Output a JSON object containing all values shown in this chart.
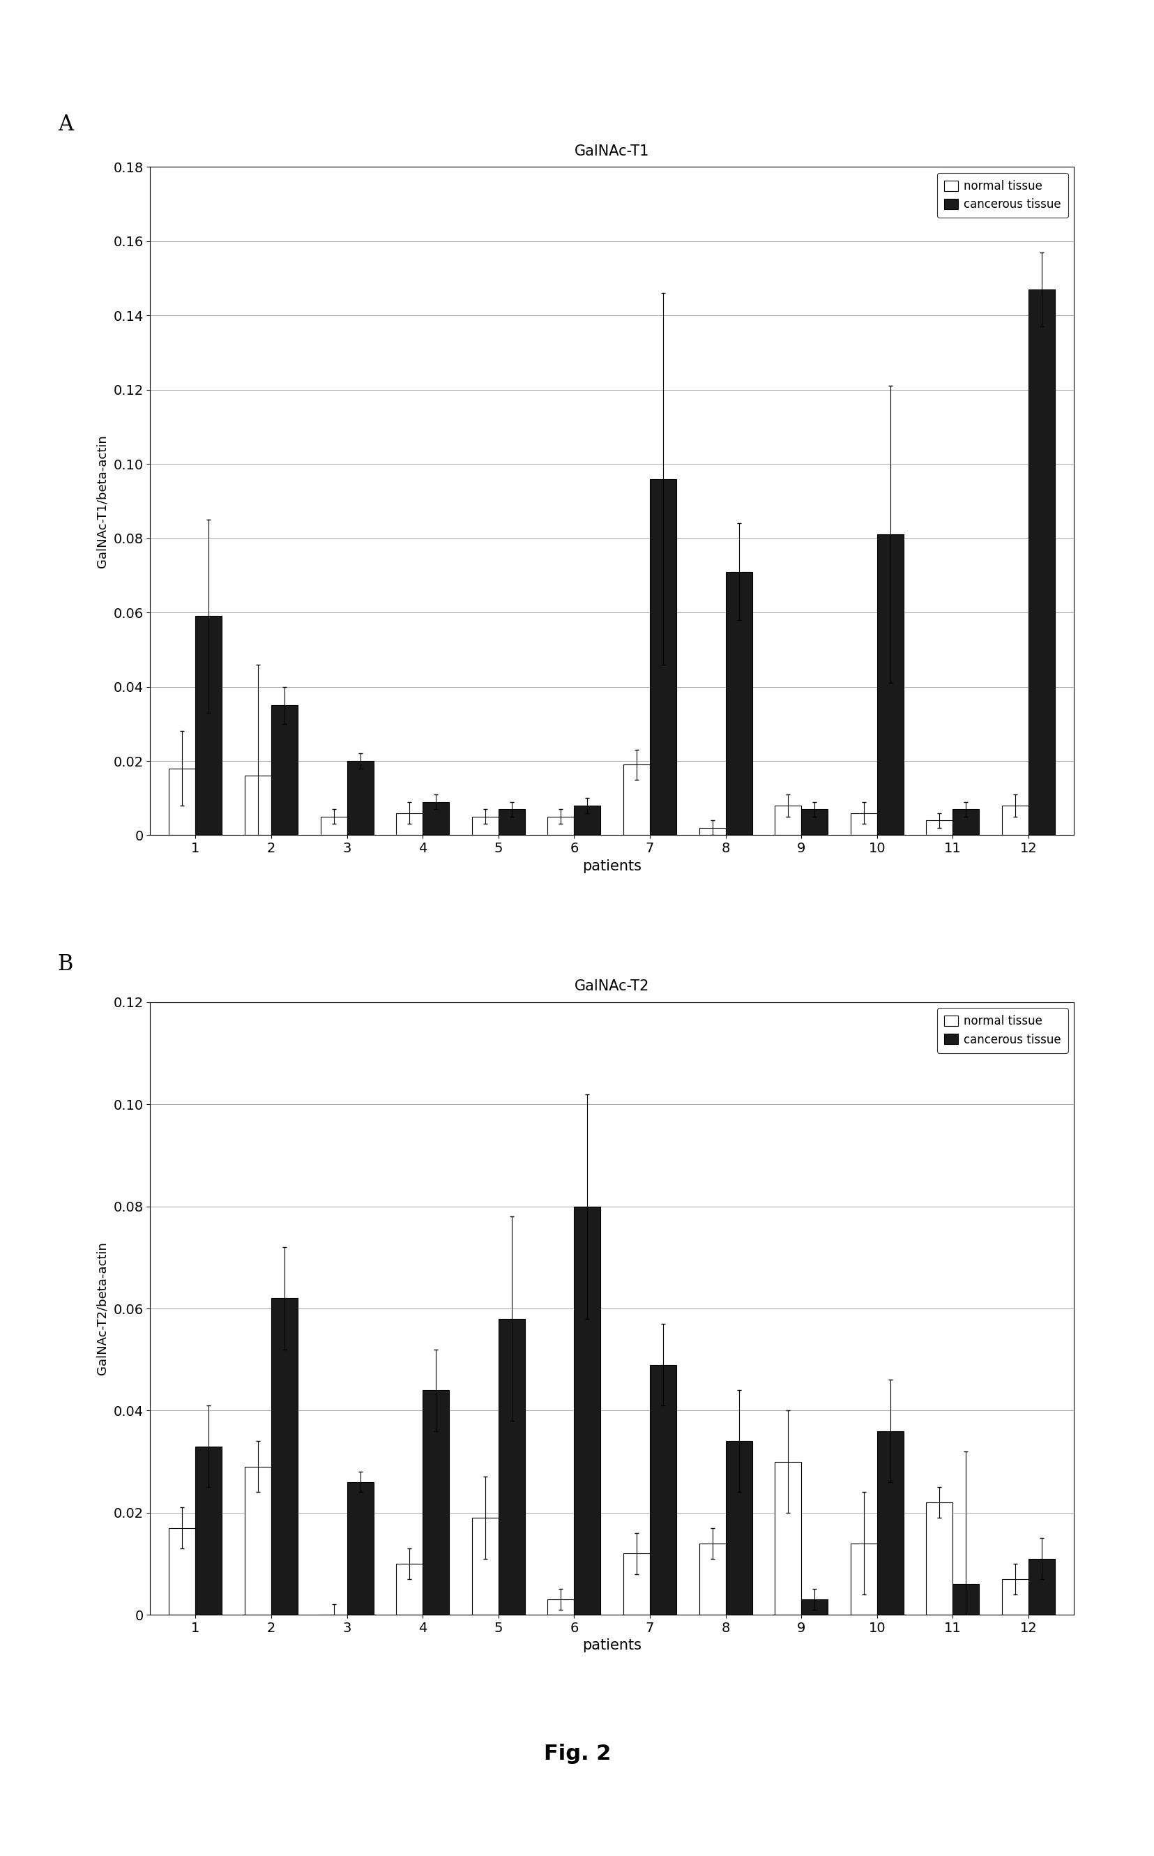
{
  "panel_A": {
    "title": "GalNAc-T1",
    "ylabel": "GalNAc-T1/beta-actin",
    "xlabel": "patients",
    "patients": [
      1,
      2,
      3,
      4,
      5,
      6,
      7,
      8,
      9,
      10,
      11,
      12
    ],
    "normal_values": [
      0.018,
      0.016,
      0.005,
      0.006,
      0.005,
      0.005,
      0.019,
      0.002,
      0.008,
      0.006,
      0.004,
      0.008
    ],
    "cancerous_values": [
      0.059,
      0.035,
      0.02,
      0.009,
      0.007,
      0.008,
      0.096,
      0.071,
      0.007,
      0.081,
      0.007,
      0.147
    ],
    "normal_err": [
      0.01,
      0.03,
      0.002,
      0.003,
      0.002,
      0.002,
      0.004,
      0.002,
      0.003,
      0.003,
      0.002,
      0.003
    ],
    "cancerous_err": [
      0.026,
      0.005,
      0.002,
      0.002,
      0.002,
      0.002,
      0.05,
      0.013,
      0.002,
      0.04,
      0.002,
      0.01
    ],
    "ylim": [
      0,
      0.18
    ],
    "yticks": [
      0,
      0.02,
      0.04,
      0.06,
      0.08,
      0.1,
      0.12,
      0.14,
      0.16,
      0.18
    ]
  },
  "panel_B": {
    "title": "GalNAc-T2",
    "ylabel": "GalNAc-T2/beta-actin",
    "xlabel": "patients",
    "patients": [
      1,
      2,
      3,
      4,
      5,
      6,
      7,
      8,
      9,
      10,
      11,
      12
    ],
    "normal_values": [
      0.017,
      0.029,
      0.0,
      0.01,
      0.019,
      0.003,
      0.012,
      0.014,
      0.03,
      0.014,
      0.022,
      0.007
    ],
    "cancerous_values": [
      0.033,
      0.062,
      0.026,
      0.044,
      0.058,
      0.08,
      0.049,
      0.034,
      0.003,
      0.036,
      0.006,
      0.011
    ],
    "normal_err": [
      0.004,
      0.005,
      0.002,
      0.003,
      0.008,
      0.002,
      0.004,
      0.003,
      0.01,
      0.01,
      0.003,
      0.003
    ],
    "cancerous_err": [
      0.008,
      0.01,
      0.002,
      0.008,
      0.02,
      0.022,
      0.008,
      0.01,
      0.002,
      0.01,
      0.026,
      0.004
    ],
    "ylim": [
      0,
      0.12
    ],
    "yticks": [
      0,
      0.02,
      0.04,
      0.06,
      0.08,
      0.1,
      0.12
    ]
  },
  "fig_label": "Fig. 2",
  "normal_color": "#ffffff",
  "cancerous_color": "#1a1a1a",
  "bar_edge_color": "#000000",
  "background_color": "#ffffff",
  "bar_width": 0.35,
  "legend_labels": [
    "normal tissue",
    "cancerous tissue"
  ],
  "panel_labels": [
    "A",
    "B"
  ]
}
